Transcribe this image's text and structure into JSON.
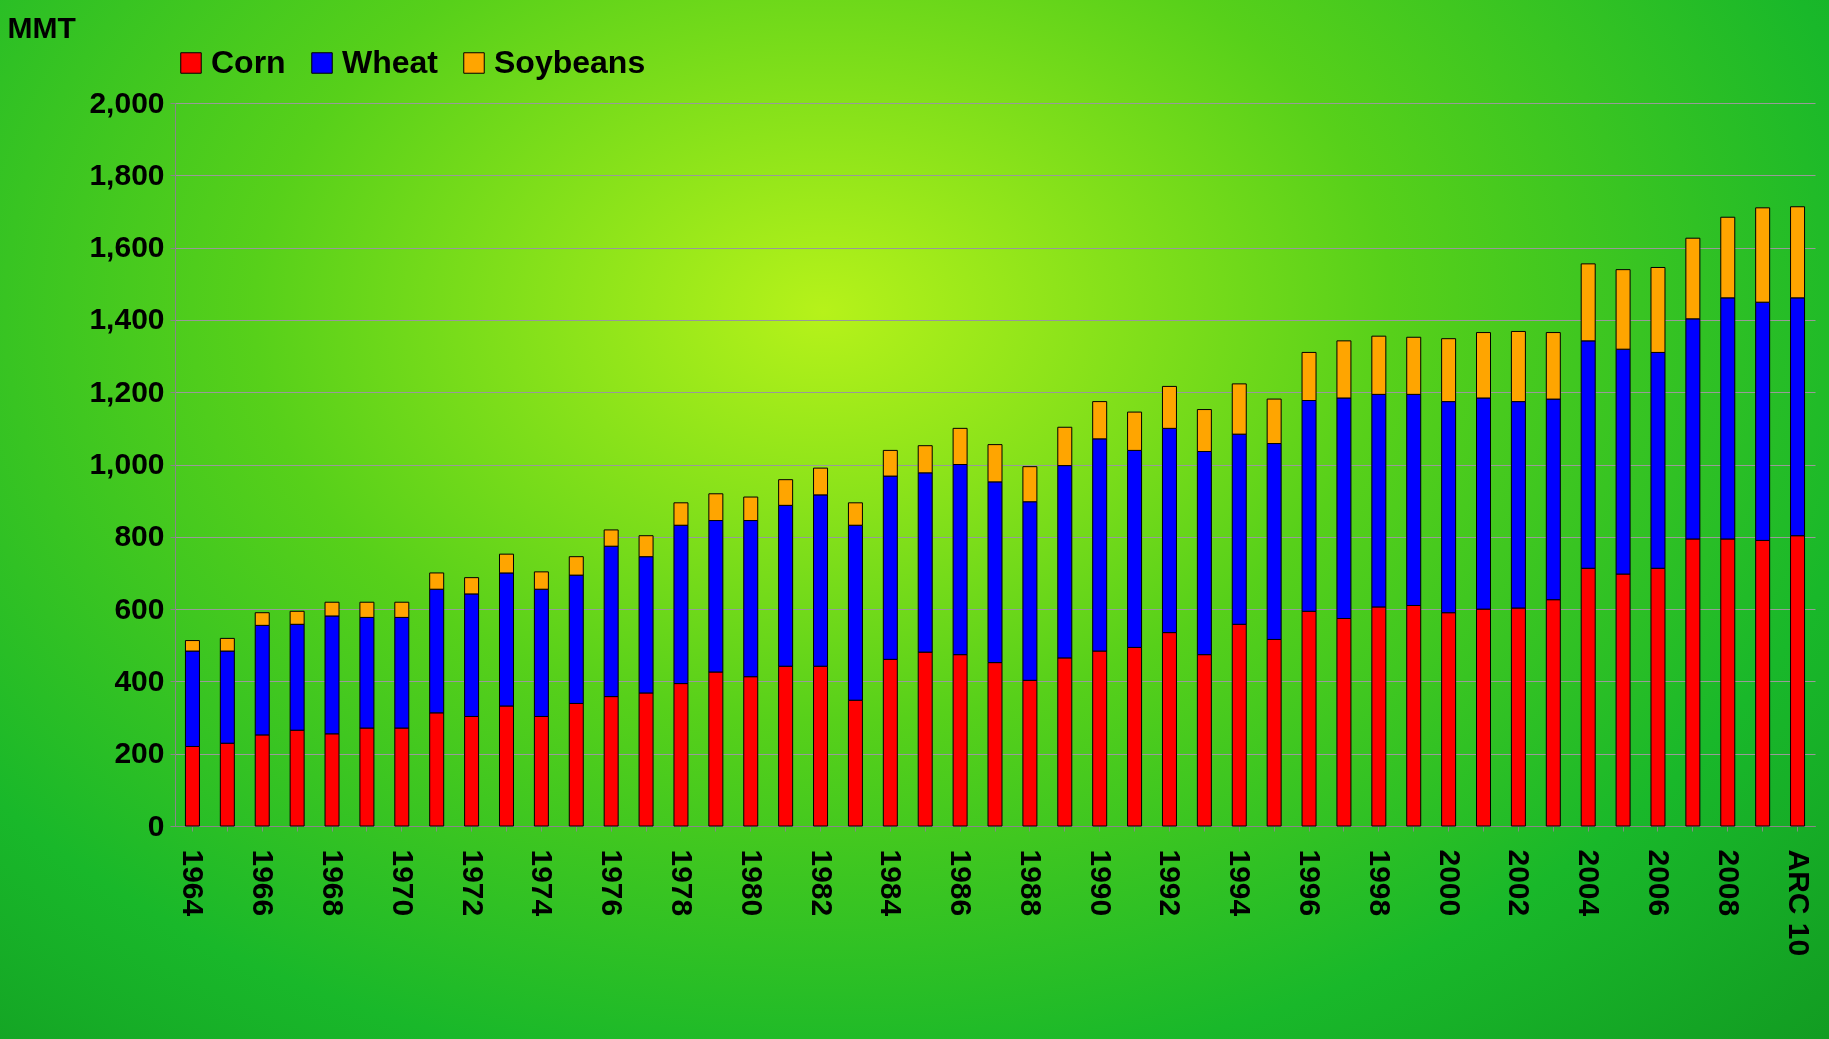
{
  "chart_data": {
    "type": "bar",
    "stacked": true,
    "ylabel": "MMT",
    "categories": [
      "1964",
      null,
      "1966",
      null,
      "1968",
      null,
      "1970",
      null,
      "1972",
      null,
      "1974",
      null,
      "1976",
      null,
      "1978",
      null,
      "1980",
      null,
      "1982",
      null,
      "1984",
      null,
      "1986",
      null,
      "1988",
      null,
      "1990",
      null,
      "1992",
      null,
      "1994",
      null,
      "1996",
      null,
      "1998",
      null,
      "2000",
      null,
      "2002",
      null,
      "2004",
      null,
      "2006",
      null,
      "2008",
      null,
      "ARC 10"
    ],
    "series": [
      {
        "name": "Corn",
        "color": "#ff0000",
        "values": [
          220,
          229,
          252,
          265,
          255,
          271,
          271,
          313,
          303,
          332,
          303,
          339,
          358,
          368,
          394,
          426,
          413,
          442,
          442,
          348,
          461,
          481,
          474,
          452,
          403,
          465,
          484,
          494,
          535,
          474,
          558,
          516,
          594,
          574,
          606,
          610,
          590,
          600,
          603,
          626,
          713,
          697,
          713,
          794,
          794,
          790,
          803
        ]
      },
      {
        "name": "Wheat",
        "color": "#0000ff",
        "values": [
          264,
          255,
          303,
          293,
          326,
          306,
          306,
          342,
          339,
          368,
          352,
          355,
          416,
          377,
          438,
          419,
          432,
          445,
          474,
          484,
          507,
          496,
          526,
          500,
          494,
          532,
          587,
          545,
          565,
          562,
          526,
          542,
          583,
          610,
          588,
          584,
          584,
          584,
          571,
          555,
          629,
          622,
          597,
          609,
          667,
          659,
          658
        ]
      },
      {
        "name": "Soybeans",
        "color": "#ffa500",
        "values": [
          29,
          35,
          35,
          36,
          38,
          42,
          42,
          45,
          45,
          52,
          48,
          51,
          45,
          58,
          62,
          74,
          65,
          71,
          74,
          62,
          71,
          75,
          100,
          103,
          97,
          106,
          103,
          106,
          116,
          116,
          139,
          123,
          133,
          158,
          161,
          158,
          174,
          181,
          194,
          184,
          213,
          220,
          235,
          223,
          223,
          261,
          252
        ]
      }
    ],
    "ylim": [
      0,
      2000
    ],
    "yticks": [
      {
        "value": 0,
        "label": "0"
      },
      {
        "value": 200,
        "label": "200"
      },
      {
        "value": 400,
        "label": "400"
      },
      {
        "value": 600,
        "label": "600"
      },
      {
        "value": 800,
        "label": "800"
      },
      {
        "value": 1000,
        "label": "1,000"
      },
      {
        "value": 1200,
        "label": "1,200"
      },
      {
        "value": 1400,
        "label": "1,400"
      },
      {
        "value": 1600,
        "label": "1,600"
      },
      {
        "value": 1800,
        "label": "1,800"
      },
      {
        "value": 2000,
        "label": "2,000"
      }
    ],
    "grid": "y",
    "legend": "top"
  }
}
